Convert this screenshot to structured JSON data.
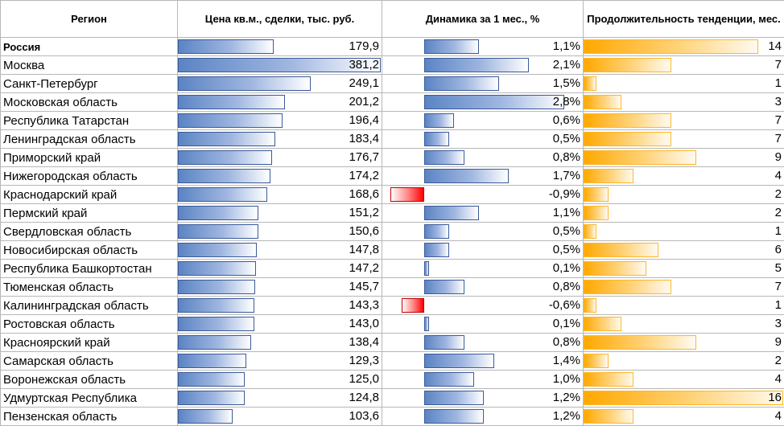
{
  "headers": {
    "region": "Регион",
    "price": "Цена кв.м., сделки, тыс. руб.",
    "dynamics": "Динамика за 1 мес., %",
    "duration": "Продолжительность тенденции, мес."
  },
  "colors": {
    "blue": "#5b84c4",
    "red": "#ff0000",
    "orange": "#ffa800",
    "border": "#b7b7b7"
  },
  "chart_data": {
    "type": "table",
    "columns": [
      "Регион",
      "Цена кв.м., сделки, тыс. руб.",
      "Динамика за 1 мес., %",
      "Продолжительность тенденции, мес."
    ],
    "rows": [
      {
        "region": "Россия",
        "price": "179,9",
        "change": "1,1%",
        "duration": "14",
        "bold": true
      },
      {
        "region": "Москва",
        "price": "381,2",
        "change": "2,1%",
        "duration": "7"
      },
      {
        "region": "Санкт-Петербург",
        "price": "249,1",
        "change": "1,5%",
        "duration": "1"
      },
      {
        "region": "Московская область",
        "price": "201,2",
        "change": "2,8%",
        "duration": "3"
      },
      {
        "region": "Республика Татарстан",
        "price": "196,4",
        "change": "0,6%",
        "duration": "7"
      },
      {
        "region": "Ленинградская область",
        "price": "183,4",
        "change": "0,5%",
        "duration": "7"
      },
      {
        "region": "Приморский край",
        "price": "176,7",
        "change": "0,8%",
        "duration": "9"
      },
      {
        "region": "Нижегородская область",
        "price": "174,2",
        "change": "1,7%",
        "duration": "4"
      },
      {
        "region": "Краснодарский край",
        "price": "168,6",
        "change": "-0,9%",
        "duration": "2"
      },
      {
        "region": "Пермский край",
        "price": "151,2",
        "change": "1,1%",
        "duration": "2"
      },
      {
        "region": "Свердловская область",
        "price": "150,6",
        "change": "0,5%",
        "duration": "1"
      },
      {
        "region": "Новосибирская область",
        "price": "147,8",
        "change": "0,5%",
        "duration": "6"
      },
      {
        "region": "Республика Башкортостан",
        "price": "147,2",
        "change": "0,1%",
        "duration": "5"
      },
      {
        "region": "Тюменская область",
        "price": "145,7",
        "change": "0,8%",
        "duration": "7"
      },
      {
        "region": "Калининградская область",
        "price": "143,3",
        "change": "-0,6%",
        "duration": "1"
      },
      {
        "region": "Ростовская область",
        "price": "143,0",
        "change": "0,1%",
        "duration": "3"
      },
      {
        "region": "Красноярский край",
        "price": "138,4",
        "change": "0,8%",
        "duration": "9"
      },
      {
        "region": "Самарская область",
        "price": "129,3",
        "change": "1,4%",
        "duration": "2"
      },
      {
        "region": "Воронежская область",
        "price": "125,0",
        "change": "1,0%",
        "duration": "4"
      },
      {
        "region": "Удмуртская Республика",
        "price": "124,8",
        "change": "1,2%",
        "duration": "16"
      },
      {
        "region": "Пензенская область",
        "price": "103,6",
        "change": "1,2%",
        "duration": "4"
      }
    ]
  }
}
